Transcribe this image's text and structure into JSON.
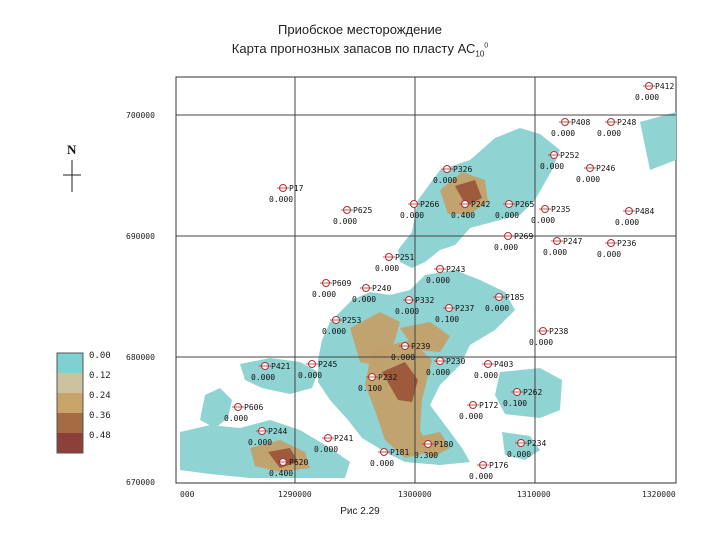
{
  "header": {
    "title": "Приобское месторождение",
    "subtitle": "Карта прогнозных запасов по пласту АС",
    "subtitle_sub": "10",
    "subtitle_sup": "0"
  },
  "caption": "Рис 2.29",
  "north_label": "N",
  "y_axis_labels": [
    "700000",
    "690000",
    "680000",
    "670000"
  ],
  "x_axis_labels": [
    "000",
    "1290000",
    "1300000",
    "1310000",
    "1320000"
  ],
  "legend": {
    "values": [
      "0.00",
      "0.12",
      "0.24",
      "0.36",
      "0.48"
    ],
    "colors": [
      "#7fd0d0",
      "#cbc3a0",
      "#c9a469",
      "#a56c44",
      "#8c4039"
    ]
  },
  "map_colors": {
    "low": "#8fd3d3",
    "mid": "#c4a06a",
    "high": "#9d5a3d"
  },
  "wells": [
    {
      "name": "P412",
      "value": "0.000"
    },
    {
      "name": "P408",
      "value": "0.000"
    },
    {
      "name": "P248",
      "value": "0.000"
    },
    {
      "name": "P252",
      "value": "0.000"
    },
    {
      "name": "P246",
      "value": "0.000"
    },
    {
      "name": "P326",
      "value": "0.000"
    },
    {
      "name": "P17",
      "value": "0.000"
    },
    {
      "name": "P625",
      "value": "0.000"
    },
    {
      "name": "P266",
      "value": "0.000"
    },
    {
      "name": "P242",
      "value": "0.400"
    },
    {
      "name": "P265",
      "value": "0.000"
    },
    {
      "name": "P235",
      "value": "0.000"
    },
    {
      "name": "P484",
      "value": "0.000"
    },
    {
      "name": "P269",
      "value": "0.000"
    },
    {
      "name": "P247",
      "value": "0.000"
    },
    {
      "name": "P236",
      "value": "0.000"
    },
    {
      "name": "P251",
      "value": "0.000"
    },
    {
      "name": "P243",
      "value": "0.000"
    },
    {
      "name": "P609",
      "value": "0.000"
    },
    {
      "name": "P240",
      "value": "0.000"
    },
    {
      "name": "P332",
      "value": "0.000"
    },
    {
      "name": "P185",
      "value": "0.000"
    },
    {
      "name": "P237",
      "value": "0.100"
    },
    {
      "name": "P253",
      "value": "0.000"
    },
    {
      "name": "P238",
      "value": "0.000"
    },
    {
      "name": "P239",
      "value": "0.000"
    },
    {
      "name": "P421",
      "value": "0.000"
    },
    {
      "name": "P245",
      "value": "0.000"
    },
    {
      "name": "P230",
      "value": "0.000"
    },
    {
      "name": "P403",
      "value": "0.000"
    },
    {
      "name": "P232",
      "value": "0.100"
    },
    {
      "name": "P262",
      "value": "0.100"
    },
    {
      "name": "P606",
      "value": "0.000"
    },
    {
      "name": "P172",
      "value": "0.000"
    },
    {
      "name": "P244",
      "value": "0.000"
    },
    {
      "name": "P241",
      "value": "0.000"
    },
    {
      "name": "P180",
      "value": "0.300"
    },
    {
      "name": "P234",
      "value": "0.000"
    },
    {
      "name": "P620",
      "value": "0.400"
    },
    {
      "name": "P181",
      "value": "0.000"
    },
    {
      "name": "P176",
      "value": "0.000"
    }
  ]
}
